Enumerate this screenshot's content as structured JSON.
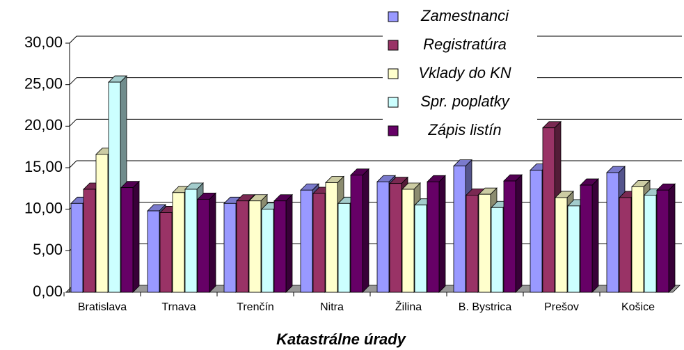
{
  "chart_data": {
    "type": "bar3d",
    "x_label": "Katastrálne úrady",
    "categories": [
      "Bratislava",
      "Trnava",
      "Trenčín",
      "Nitra",
      "Žilina",
      "B. Bystrica",
      "Prešov",
      "Košice"
    ],
    "series": [
      {
        "name": "Zamestnanci",
        "color": "#9999ff",
        "values": [
          10.7,
          9.8,
          10.7,
          12.3,
          13.3,
          15.2,
          14.7,
          14.4
        ]
      },
      {
        "name": "Registratúra",
        "color": "#993366",
        "values": [
          12.4,
          9.6,
          11.0,
          11.9,
          13.1,
          11.7,
          19.8,
          11.4
        ]
      },
      {
        "name": "Vklady do KN",
        "color": "#ffffcc",
        "values": [
          16.6,
          12.0,
          11.0,
          13.2,
          12.4,
          11.8,
          11.4,
          12.7
        ]
      },
      {
        "name": "Spr. poplatky",
        "color": "#ccffff",
        "values": [
          25.3,
          12.4,
          10.0,
          10.7,
          10.5,
          10.2,
          10.4,
          11.7
        ]
      },
      {
        "name": "Zápis listín",
        "color": "#660066",
        "values": [
          12.6,
          11.2,
          11.0,
          14.1,
          13.3,
          13.4,
          12.9,
          12.3
        ]
      }
    ],
    "ylim": [
      0,
      30
    ],
    "yticks": [
      {
        "value": 0,
        "label": "0,00"
      },
      {
        "value": 5,
        "label": "5,00"
      },
      {
        "value": 10,
        "label": "10,00"
      },
      {
        "value": 15,
        "label": "15,00"
      },
      {
        "value": 20,
        "label": "20,00"
      },
      {
        "value": 25,
        "label": "25,00"
      },
      {
        "value": 30,
        "label": "30,00"
      }
    ],
    "grid": true
  }
}
